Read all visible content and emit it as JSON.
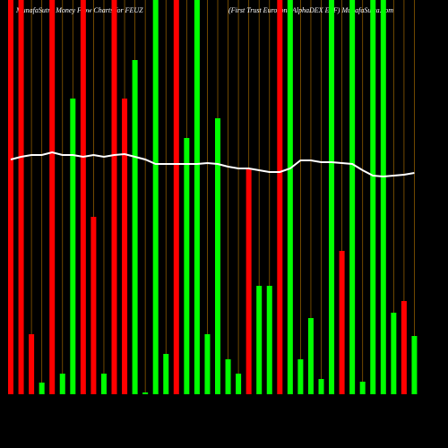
{
  "chart_data": {
    "type": "bar",
    "title": "MunafaSutra Money Flow Charts for FEUZ",
    "subtitle": "(First Trust Eurozone AlphaDEX ETF) MunafaSutra.com",
    "categories": [
      null,
      null,
      null,
      null,
      null,
      null,
      null,
      null,
      null,
      null,
      null,
      null,
      null,
      null,
      null,
      null,
      null,
      null,
      null,
      null,
      null,
      null,
      null,
      null,
      null,
      null,
      null,
      null,
      null,
      null,
      null,
      null,
      null,
      null,
      null,
      null,
      null,
      null,
      null,
      null
    ],
    "values": [
      440,
      440,
      67,
      13,
      440,
      23,
      330,
      440,
      198,
      23,
      440,
      330,
      373,
      2,
      440,
      45,
      440,
      286,
      440,
      67,
      308,
      39,
      23,
      252,
      121,
      121,
      440,
      440,
      39,
      85,
      17,
      440,
      160,
      440,
      14,
      440,
      440,
      91,
      104,
      65
    ],
    "colors": [
      "#ff0000",
      "#ff0000",
      "#ff0000",
      "#00ff00",
      "#ff0000",
      "#00ff00",
      "#00ff00",
      "#ff0000",
      "#ff0000",
      "#00ff00",
      "#ff0000",
      "#ff0000",
      "#00ff00",
      "#00ff00",
      "#00ff00",
      "#00ff00",
      "#ff0000",
      "#00ff00",
      "#00ff00",
      "#00ff00",
      "#00ff00",
      "#00ff00",
      "#00ff00",
      "#ff0000",
      "#00ff00",
      "#00ff00",
      "#ff0000",
      "#00ff00",
      "#00ff00",
      "#00ff00",
      "#00ff00",
      "#00ff00",
      "#ff0000",
      "#00ff00",
      "#00ff00",
      "#00ff00",
      "#00ff00",
      "#00ff00",
      "#ff0000",
      "#00ff00"
    ],
    "line_values": [
      262,
      265,
      267,
      267,
      270,
      267,
      267,
      265,
      267,
      265,
      267,
      268,
      265,
      262,
      257,
      257,
      257,
      257,
      257,
      258,
      257,
      254,
      252,
      252,
      250,
      248,
      248,
      252,
      261,
      261,
      259,
      259,
      258,
      257,
      250,
      244,
      243,
      244,
      245,
      247
    ],
    "line_color": "#ffffff",
    "grid_color": "#8b5a00",
    "ylim": [
      0,
      440
    ]
  }
}
